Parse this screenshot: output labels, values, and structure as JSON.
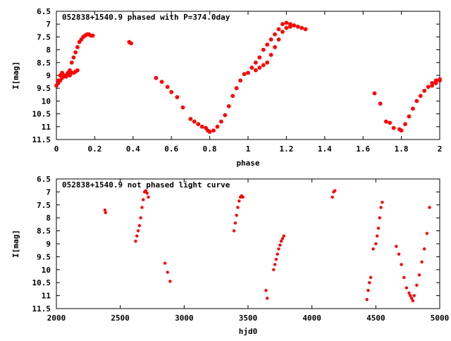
{
  "chart_data": [
    {
      "type": "scatter",
      "title": "052838+1540.9 phased with P=374.0day",
      "xlabel": "phase",
      "ylabel": "I[mag]",
      "xlim": [
        0,
        2
      ],
      "ylim": [
        6.5,
        11.5
      ],
      "y_inverted": true,
      "xticks": [
        0,
        0.2,
        0.4,
        0.6,
        0.8,
        1,
        1.2,
        1.4,
        1.6,
        1.8,
        2
      ],
      "yticks": [
        6.5,
        7,
        7.5,
        8,
        8.5,
        9,
        9.5,
        10,
        10.5,
        11,
        11.5
      ],
      "xtick_labels": [
        "0",
        "0.2",
        "0.4",
        "0.6",
        "0.8",
        "1",
        "1.2",
        "1.4",
        "1.6",
        "1.8",
        "2"
      ],
      "ytick_labels": [
        "6.5",
        "7",
        "7.5",
        "8",
        "8.5",
        "9",
        "9.5",
        "10",
        "10.5",
        "11",
        "11.5"
      ],
      "grid": false,
      "marker_color": "#ff0000",
      "series": [
        {
          "x": [
            0.0,
            0.01,
            0.02,
            0.03,
            0.04,
            0.05,
            0.06,
            0.07,
            0.08,
            0.09,
            0.1,
            0.11,
            0.12,
            0.13,
            0.14,
            0.15,
            0.16,
            0.17,
            0.18,
            0.19,
            0.01,
            0.02,
            0.03,
            0.04,
            0.05,
            0.06,
            0.07,
            0.08,
            0.09,
            0.1,
            0.11,
            0.38,
            0.39,
            0.52,
            0.55,
            0.58,
            0.6,
            0.63,
            0.66,
            0.7,
            0.72,
            0.74,
            0.76,
            0.78,
            0.79,
            0.8,
            0.82,
            0.84,
            0.86,
            0.88,
            0.9,
            0.92,
            0.94,
            0.96,
            0.98,
            1.0,
            1.02,
            1.04,
            1.06,
            1.08,
            1.1,
            1.12,
            1.14,
            1.16,
            1.18,
            1.2,
            1.22,
            1.24,
            1.26,
            1.28,
            1.3,
            1.04,
            1.06,
            1.08,
            1.1,
            1.12,
            1.14,
            1.16,
            1.18,
            1.2,
            1.22,
            1.66,
            1.69,
            1.72,
            1.74,
            1.76,
            1.79,
            1.8,
            1.82,
            1.84,
            1.86,
            1.88,
            1.9,
            1.92,
            1.94,
            1.96,
            1.98,
            2.0,
            1.96,
            1.98,
            2.0
          ],
          "y": [
            9.4,
            9.2,
            9.0,
            8.9,
            9.0,
            9.0,
            8.9,
            8.8,
            8.5,
            8.3,
            8.1,
            7.9,
            7.7,
            7.6,
            7.5,
            7.45,
            7.4,
            7.4,
            7.45,
            7.45,
            9.3,
            9.2,
            9.1,
            9.0,
            9.05,
            8.95,
            9.0,
            8.9,
            8.9,
            8.85,
            8.8,
            7.7,
            7.75,
            9.1,
            9.25,
            9.45,
            9.65,
            9.85,
            10.25,
            10.7,
            10.8,
            10.9,
            11.0,
            11.05,
            11.15,
            11.2,
            11.15,
            11.0,
            10.8,
            10.55,
            10.2,
            9.8,
            9.5,
            9.2,
            8.95,
            8.9,
            8.7,
            8.5,
            8.3,
            8.0,
            7.8,
            7.6,
            7.4,
            7.2,
            7.0,
            6.95,
            7.0,
            7.05,
            7.1,
            7.15,
            7.2,
            8.8,
            8.7,
            8.6,
            8.5,
            8.2,
            7.9,
            7.6,
            7.3,
            7.15,
            7.1,
            9.7,
            10.1,
            10.8,
            10.85,
            11.05,
            11.1,
            11.15,
            10.9,
            10.6,
            10.3,
            10.0,
            9.8,
            9.6,
            9.45,
            9.3,
            9.2,
            9.15,
            9.4,
            9.3,
            9.2
          ]
        }
      ]
    },
    {
      "type": "scatter",
      "title": "052838+1540.9 not phased light curve",
      "xlabel": "hjd0",
      "ylabel": "I[mag]",
      "xlim": [
        2000,
        5000
      ],
      "ylim": [
        6.5,
        11.5
      ],
      "y_inverted": true,
      "xticks": [
        2000,
        2500,
        3000,
        3500,
        4000,
        4500,
        5000
      ],
      "yticks": [
        6.5,
        7,
        7.5,
        8,
        8.5,
        9,
        9.5,
        10,
        10.5,
        11,
        11.5
      ],
      "xtick_labels": [
        "2000",
        "2500",
        "3000",
        "3500",
        "4000",
        "4500",
        "5000"
      ],
      "ytick_labels": [
        "6.5",
        "7",
        "7.5",
        "8",
        "8.5",
        "9",
        "9.5",
        "10",
        "10.5",
        "11",
        "11.5"
      ],
      "grid": false,
      "marker_color": "#ff0000",
      "series": [
        {
          "x": [
            2380,
            2385,
            2620,
            2630,
            2640,
            2650,
            2660,
            2670,
            2680,
            2690,
            2700,
            2710,
            2720,
            2850,
            2870,
            2890,
            3390,
            3400,
            3410,
            3420,
            3430,
            3440,
            3450,
            3460,
            3640,
            3650,
            3700,
            3710,
            3720,
            3730,
            3740,
            3750,
            3760,
            3770,
            3780,
            4160,
            4170,
            4180,
            4430,
            4440,
            4450,
            4460,
            4480,
            4500,
            4510,
            4520,
            4530,
            4540,
            4550,
            4660,
            4680,
            4700,
            4720,
            4740,
            4760,
            4770,
            4780,
            4790,
            4800,
            4820,
            4840,
            4860,
            4880,
            4900,
            4920
          ],
          "y": [
            7.7,
            7.8,
            8.9,
            8.7,
            8.5,
            8.3,
            8.0,
            7.6,
            7.3,
            7.0,
            6.95,
            7.05,
            7.2,
            9.75,
            10.1,
            10.45,
            8.5,
            8.2,
            7.9,
            7.6,
            7.35,
            7.2,
            7.15,
            7.2,
            10.8,
            11.1,
            10.0,
            9.8,
            9.6,
            9.4,
            9.2,
            9.05,
            8.9,
            8.8,
            8.7,
            7.2,
            7.0,
            6.95,
            11.15,
            10.8,
            10.5,
            10.3,
            9.2,
            9.0,
            8.7,
            8.4,
            8.0,
            7.6,
            7.4,
            9.1,
            9.4,
            9.8,
            10.3,
            10.7,
            10.9,
            11.0,
            11.1,
            11.2,
            11.0,
            10.6,
            10.2,
            9.7,
            9.2,
            8.6,
            7.6
          ]
        }
      ]
    }
  ]
}
